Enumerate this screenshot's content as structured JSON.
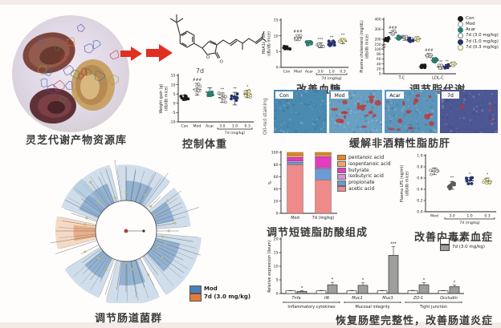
{
  "figure": {
    "library_label": "灵芝代谢产物资源库",
    "compound_label": "7d",
    "atom_o": "O",
    "weight_label": "控制体重",
    "glucose_label": "改善血糖",
    "lipid_label": "调节脂代谢",
    "liver_label": "缓解非酒精性脂肪肝",
    "stain_label": "Oil-red staining",
    "microbiota_label": "调节肠道菌群",
    "scfa_label": "调节短链脂肪酸组成",
    "lps_label": "改善内毒素血症",
    "gut_label": "恢复肠壁完整性，改善肠道炎症"
  },
  "colors": {
    "arrow": "#e03022",
    "mod_blue": "#4a7fb5",
    "treat_orange": "#e07b39"
  },
  "histology": {
    "tiles": [
      {
        "label": "Con",
        "base": "#4a89b0",
        "red": 0
      },
      {
        "label": "Mod",
        "base": "#699fc0",
        "red": 22
      },
      {
        "label": "Acar",
        "base": "#5d95ba",
        "red": 15
      },
      {
        "label": "7d",
        "base": "#4c5793",
        "red": 3
      }
    ]
  },
  "chart_data": [
    {
      "id": "chart-weight",
      "type": "scatter",
      "ylabel": "Weight gain (g)\n(db/db mice)",
      "ylim": [
        -10,
        15
      ],
      "yticks": [
        -10,
        -5,
        0,
        5,
        10,
        15
      ],
      "categories": [
        {
          "label": "Con",
          "mean": 3.0,
          "sd": 1.5,
          "color": "#1a1a1a",
          "open": false,
          "sig": ""
        },
        {
          "label": "Mod",
          "mean": 7.5,
          "sd": 3.2,
          "color": "#8a8a8a",
          "open": true,
          "sig": "###"
        },
        {
          "label": "Acar",
          "mean": 6.0,
          "sd": 2.4,
          "color": "#2a7d6d",
          "open": false,
          "sig": ""
        },
        {
          "label": "3.0",
          "mean": 3.0,
          "sd": 2.6,
          "color": "#787878",
          "open": true,
          "sig": "**"
        },
        {
          "label": "1.0",
          "mean": 2.5,
          "sd": 3.4,
          "color": "#26336f",
          "open": false,
          "sig": "**"
        },
        {
          "label": "0.3",
          "mean": 5.0,
          "sd": 2.0,
          "color": "#a29a52",
          "open": true,
          "sig": "*"
        }
      ],
      "bracket": {
        "label": "7d (mg/kg)",
        "from": 3,
        "to": 5
      }
    },
    {
      "id": "chart-hba1c",
      "type": "scatter",
      "ylabel": "HbA1c (%)\n(db/db mice)",
      "ylim": [
        0,
        15
      ],
      "yticks": [
        0,
        5,
        10,
        15
      ],
      "categories": [
        {
          "label": "Con",
          "mean": 6.2,
          "sd": 0.5,
          "color": "#1a1a1a",
          "open": false,
          "sig": ""
        },
        {
          "label": "Mod",
          "mean": 9.4,
          "sd": 0.9,
          "color": "#8a8a8a",
          "open": true,
          "sig": "###"
        },
        {
          "label": "Acar",
          "mean": 7.8,
          "sd": 0.7,
          "color": "#2a7d6d",
          "open": false,
          "sig": ""
        },
        {
          "label": "3.0",
          "mean": 7.0,
          "sd": 0.8,
          "color": "#787878",
          "open": true,
          "sig": "***"
        },
        {
          "label": "1.0",
          "mean": 7.6,
          "sd": 0.8,
          "color": "#26336f",
          "open": false,
          "sig": "**"
        },
        {
          "label": "0.3",
          "mean": 8.3,
          "sd": 0.8,
          "color": "#a29a52",
          "open": true,
          "sig": "**"
        }
      ],
      "bracket": {
        "label": "7d (mg/kg)",
        "from": 3,
        "to": 5
      }
    },
    {
      "id": "chart-chol",
      "type": "scatter-grouped",
      "ylabel": "Plasma cholesterol (mg/dL)\n(db/db mice)",
      "groups": [
        "T-C",
        "LDL-C"
      ],
      "group_sd": [
        20,
        8
      ],
      "axis_break": true,
      "yticks_low": [
        0,
        20,
        40,
        60,
        80,
        100
      ],
      "yticks_high": [
        150,
        200,
        300,
        400
      ],
      "ymax": 400,
      "series": [
        {
          "name": "Con",
          "color": "#1a1a1a",
          "open": false,
          "values": [
            200,
            30
          ],
          "sig": [
            "",
            ""
          ]
        },
        {
          "name": "Mod",
          "color": "#8a8a8a",
          "open": true,
          "values": [
            265,
            75
          ],
          "sig": [
            "###",
            "###"
          ]
        },
        {
          "name": "Acar",
          "color": "#2a7d6d",
          "open": false,
          "values": [
            215,
            55
          ],
          "sig": [
            "",
            ""
          ]
        },
        {
          "name": "7d (3.0 mg/kg)",
          "color": "#787878",
          "open": true,
          "values": [
            210,
            28
          ],
          "sig": [
            "",
            "**"
          ]
        },
        {
          "name": "7d (1.0 mg/kg)",
          "color": "#26336f",
          "open": false,
          "values": [
            195,
            30
          ],
          "sig": [
            "",
            "**"
          ]
        },
        {
          "name": "7d (0.3 mg/kg)",
          "color": "#a29a52",
          "open": true,
          "values": [
            205,
            40
          ],
          "sig": [
            "",
            ""
          ]
        }
      ]
    },
    {
      "id": "chart-scfa",
      "type": "stacked-bar",
      "ylabel": "%",
      "ylim": [
        0,
        100
      ],
      "yticks": [
        0,
        20,
        40,
        60,
        80,
        100
      ],
      "categories": [
        "Mod",
        "7d (mg/kg)"
      ],
      "series": [
        {
          "name": "acetic acid",
          "color": "#ee8a8a",
          "values": [
            80,
            55
          ]
        },
        {
          "name": "propionate",
          "color": "#6b9bd2",
          "values": [
            4,
            18
          ]
        },
        {
          "name": "isobutyric acid",
          "color": "#d893d8",
          "values": [
            2,
            2
          ]
        },
        {
          "name": "butyrate",
          "color": "#e23cc0",
          "values": [
            6,
            18
          ]
        },
        {
          "name": "isopentanoic acid",
          "color": "#f0a868",
          "values": [
            3,
            3
          ]
        },
        {
          "name": "pentanoic acid",
          "color": "#e8871e",
          "values": [
            5,
            4
          ]
        }
      ],
      "legend_order": "reverse"
    },
    {
      "id": "chart-lps",
      "type": "scatter",
      "ylabel": "Plasma LPS (ng/ml)\n(db/db mice)",
      "ylim": [
        0,
        1.0
      ],
      "yticks": [
        0,
        0.2,
        0.4,
        0.6,
        0.8,
        1.0
      ],
      "decimals": 1,
      "categories": [
        {
          "label": "Mod",
          "mean": 0.72,
          "sd": 0.06,
          "color": "#8a8a8a",
          "open": true,
          "sig": ""
        },
        {
          "label": "3.0",
          "mean": 0.47,
          "sd": 0.07,
          "color": "#5a5a5a",
          "open": false,
          "sig": "**"
        },
        {
          "label": "1.0",
          "mean": 0.55,
          "sd": 0.06,
          "color": "#26336f",
          "open": false,
          "sig": "*"
        },
        {
          "label": "0.3",
          "mean": 0.55,
          "sd": 0.05,
          "color": "#a29a52",
          "open": true,
          "sig": "*"
        }
      ],
      "bracket": {
        "label": "7d (mg/kg)",
        "from": 1,
        "to": 3
      }
    },
    {
      "id": "chart-gene",
      "type": "bar",
      "ylabel": "Relative expression (Ileum)",
      "ylim": [
        0,
        20
      ],
      "yticks": [
        0,
        5,
        10,
        15,
        20
      ],
      "categories": [
        "Tnfa",
        "Il6",
        "Muc1",
        "Muc3",
        "ZO-1",
        "Occludin"
      ],
      "series": [
        {
          "name": "Mod",
          "color": "#ffffff",
          "values": [
            1,
            1,
            1,
            1,
            1,
            1
          ],
          "errors": [
            0.12,
            0.15,
            0.15,
            0.15,
            0.15,
            0.12
          ]
        },
        {
          "name": "7d (3.0 mg/kg)",
          "color": "#9e9e9e",
          "values": [
            0.8,
            3.2,
            3.0,
            14,
            3.2,
            2.5
          ],
          "errors": [
            0.25,
            0.9,
            0.9,
            3.2,
            0.8,
            0.6
          ],
          "sig": [
            "*",
            "*",
            "*",
            "***",
            "*",
            "*"
          ]
        }
      ],
      "group_brackets": [
        {
          "label": "Inflammatory cytokines",
          "from": 0,
          "to": 1
        },
        {
          "label": "Mucosal integrity",
          "from": 2,
          "to": 3
        },
        {
          "label": "Tight junction",
          "from": 4,
          "to": 5
        }
      ]
    },
    {
      "id": "chart-tree",
      "type": "radial-tree",
      "legend": [
        {
          "label": "Mod",
          "color": "#4a7fb5"
        },
        {
          "label": "7d (3.0 mg/kg)",
          "color": "#e07b39"
        }
      ],
      "sectors": [
        {
          "from": -52,
          "to": -14,
          "color": "blue"
        },
        {
          "from": -8,
          "to": 42,
          "color": "blue"
        },
        {
          "from": 48,
          "to": 86,
          "color": "blue"
        },
        {
          "from": 95,
          "to": 148,
          "color": "blue"
        },
        {
          "from": 153,
          "to": 196,
          "color": "blue"
        },
        {
          "from": 202,
          "to": 238,
          "color": "blue"
        },
        {
          "from": 255,
          "to": 282,
          "color": "orange"
        },
        {
          "from": 290,
          "to": 320,
          "color": "blue"
        }
      ]
    }
  ]
}
